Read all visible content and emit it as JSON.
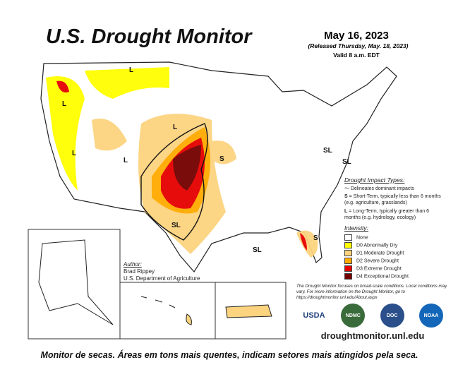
{
  "map": {
    "title": "U.S. Drought Monitor",
    "date": "May 16, 2023",
    "released": "(Released Thursday, May. 18, 2023)",
    "valid": "Valid 8 a.m. EDT",
    "labels": [
      "L",
      "L",
      "L",
      "L",
      "L",
      "S",
      "SL",
      "SL",
      "SL",
      "SL",
      "S",
      "S"
    ]
  },
  "legend": {
    "impact_title": "Drought Impact Types:",
    "delineates": "Delineates dominant impacts",
    "short_term_key": "S",
    "short_term": " = Short-Term, typically less than 6 months (e.g. agriculture, grasslands)",
    "long_term_key": "L",
    "long_term": " = Long-Term, typically greater than 6 months (e.g. hydrology, ecology)",
    "intensity_title": "Intensity:",
    "items": [
      {
        "label": "None",
        "color": "#ffffff"
      },
      {
        "label": "D0 Abnormally Dry",
        "color": "#ffff00"
      },
      {
        "label": "D1 Moderate Drought",
        "color": "#fcd37f"
      },
      {
        "label": "D2 Severe Drought",
        "color": "#ffaa00"
      },
      {
        "label": "D3 Extreme Drought",
        "color": "#e60000"
      },
      {
        "label": "D4 Exceptional Drought",
        "color": "#730000"
      }
    ]
  },
  "author": {
    "heading": "Author:",
    "name": "Brad Rippey",
    "org": "U.S. Department of Agriculture"
  },
  "note": "The Drought Monitor focuses on broad-scale conditions. Local conditions may vary. For more information on the Drought Monitor, go to https://droughtmonitor.unl.edu/About.aspx",
  "logos": [
    "USDA",
    "NDMC",
    "DOC",
    "NOAA"
  ],
  "url": "droughtmonitor.unl.edu",
  "caption": "Monitor de secas. Áreas em tons mais quentes, indicam setores mais atingidos pela seca."
}
